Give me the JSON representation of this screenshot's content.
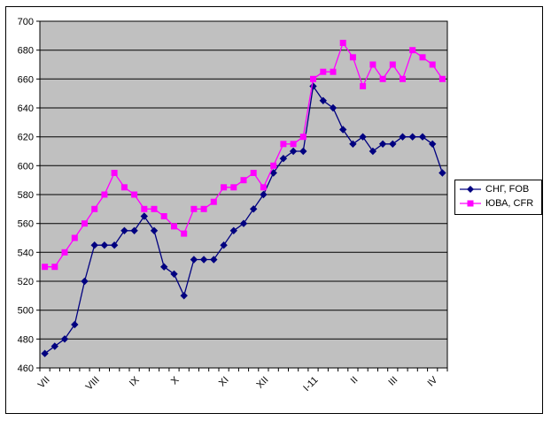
{
  "chart_data": {
    "type": "line",
    "title": "",
    "xlabel": "",
    "ylabel": "",
    "ylim": [
      460,
      700
    ],
    "y_tick_step": 20,
    "y_ticks": [
      460,
      480,
      500,
      520,
      540,
      560,
      580,
      600,
      620,
      640,
      660,
      680,
      700
    ],
    "n_points": 41,
    "x_labels": [
      {
        "label": "VII",
        "index": 0
      },
      {
        "label": "VIII",
        "index": 5
      },
      {
        "label": "IX",
        "index": 9
      },
      {
        "label": "X",
        "index": 13
      },
      {
        "label": "XI",
        "index": 18
      },
      {
        "label": "XII",
        "index": 22
      },
      {
        "label": "I-11",
        "index": 27
      },
      {
        "label": "II",
        "index": 31
      },
      {
        "label": "III",
        "index": 35
      },
      {
        "label": "IV",
        "index": 39
      }
    ],
    "grid": "horizontal",
    "plot_bg": "#C0C0C0",
    "grid_color": "#000000",
    "text_color": "#000000",
    "legend_position": "right",
    "series": [
      {
        "name": "СНГ, FOB",
        "color": "#000080",
        "marker": "diamond",
        "values": [
          470,
          475,
          480,
          490,
          520,
          545,
          545,
          545,
          555,
          555,
          565,
          555,
          530,
          525,
          510,
          535,
          535,
          535,
          545,
          555,
          560,
          570,
          580,
          595,
          605,
          610,
          610,
          655,
          645,
          640,
          625,
          615,
          620,
          610,
          615,
          615,
          620,
          620,
          620,
          615,
          595
        ]
      },
      {
        "name": "ЮВА, CFR",
        "color": "#FF00FF",
        "marker": "square",
        "values": [
          530,
          530,
          540,
          550,
          560,
          570,
          580,
          595,
          585,
          580,
          570,
          570,
          565,
          558,
          553,
          570,
          570,
          575,
          585,
          585,
          590,
          595,
          585,
          600,
          615,
          615,
          620,
          660,
          665,
          665,
          685,
          675,
          655,
          670,
          660,
          670,
          660,
          680,
          675,
          670,
          660
        ]
      }
    ]
  }
}
